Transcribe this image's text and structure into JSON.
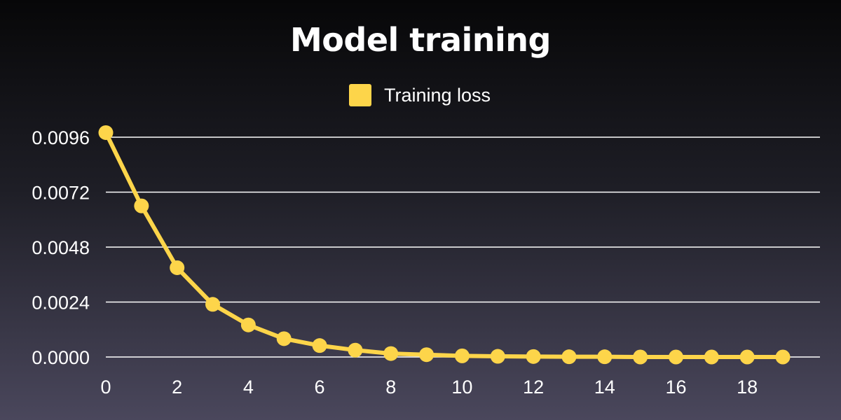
{
  "chart_data": {
    "type": "line",
    "title": "Model training",
    "xlabel": "",
    "ylabel": "",
    "x": [
      0,
      1,
      2,
      3,
      4,
      5,
      6,
      7,
      8,
      9,
      10,
      11,
      12,
      13,
      14,
      15,
      16,
      17,
      18,
      19
    ],
    "x_ticks": [
      0,
      2,
      4,
      6,
      8,
      10,
      12,
      14,
      16,
      18
    ],
    "y_ticks": [
      "0.0000",
      "0.0024",
      "0.0048",
      "0.0072",
      "0.0096"
    ],
    "xlim": [
      0,
      19
    ],
    "ylim": [
      0,
      0.0096
    ],
    "grid": "horizontal",
    "legend_position": "top-center",
    "series": [
      {
        "name": "Training loss",
        "color": "#fdd54a",
        "values": [
          0.0098,
          0.0066,
          0.0039,
          0.0023,
          0.0014,
          0.0008,
          0.0005,
          0.0003,
          0.00015,
          0.0001,
          5e-05,
          3e-05,
          2e-05,
          1e-05,
          1e-05,
          0.0,
          0.0,
          0.0,
          0.0,
          0.0
        ]
      }
    ]
  }
}
